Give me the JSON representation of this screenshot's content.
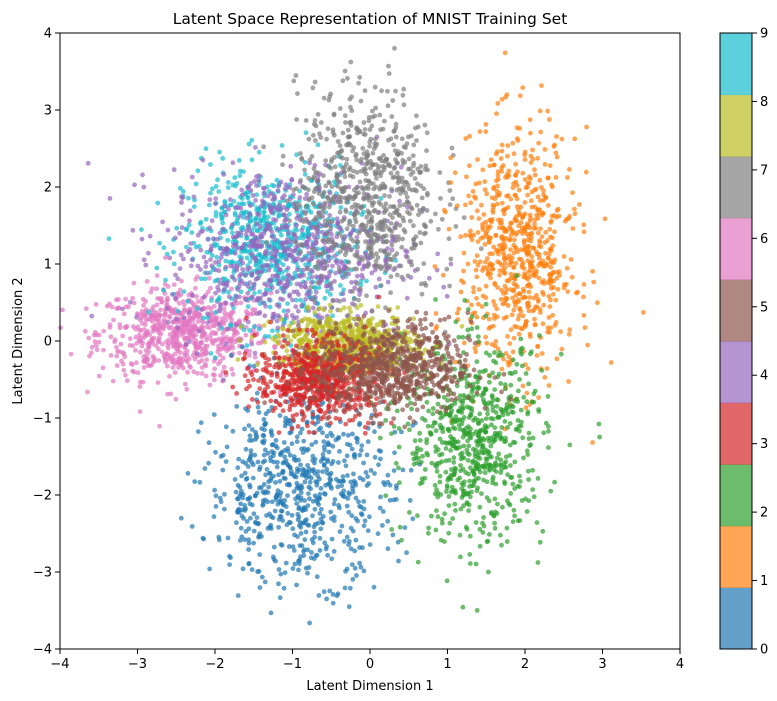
{
  "chart_data": {
    "type": "scatter",
    "title": "Latent Space Representation of MNIST Training Set",
    "xlabel": "Latent Dimension 1",
    "ylabel": "Latent Dimension 2",
    "xlim": [
      -4,
      4
    ],
    "ylim": [
      -4,
      4
    ],
    "x_ticks": [
      "−4",
      "−3",
      "−2",
      "−1",
      "0",
      "1",
      "2",
      "3",
      "4"
    ],
    "y_ticks": [
      "−4",
      "−3",
      "−2",
      "−1",
      "0",
      "1",
      "2",
      "3",
      "4"
    ],
    "grid": false,
    "colormap": "tab10",
    "point_alpha": 0.7,
    "colorbar": {
      "range": [
        0,
        9
      ],
      "ticks": [
        "0",
        "1",
        "2",
        "3",
        "4",
        "5",
        "6",
        "7",
        "8",
        "9"
      ],
      "colors": [
        "#1f77b4",
        "#ff7f0e",
        "#2ca02c",
        "#d62728",
        "#9467bd",
        "#8c564b",
        "#e377c2",
        "#7f7f7f",
        "#bcbd22",
        "#17becf"
      ]
    },
    "clusters": [
      {
        "label": "0",
        "color": "#1f77b4",
        "center": [
          -0.9,
          -1.9
        ],
        "spread": [
          0.6,
          0.6
        ]
      },
      {
        "label": "1",
        "color": "#ff7f0e",
        "center": [
          1.9,
          1.1
        ],
        "spread": [
          0.38,
          0.8
        ]
      },
      {
        "label": "2",
        "color": "#2ca02c",
        "center": [
          1.35,
          -1.3
        ],
        "spread": [
          0.45,
          0.65
        ]
      },
      {
        "label": "3",
        "color": "#d62728",
        "center": [
          -0.65,
          -0.5
        ],
        "spread": [
          0.4,
          0.25
        ]
      },
      {
        "label": "4",
        "color": "#9467bd",
        "center": [
          -1.1,
          1.15
        ],
        "spread": [
          0.75,
          0.55
        ]
      },
      {
        "label": "5",
        "color": "#8c564b",
        "center": [
          0.3,
          -0.35
        ],
        "spread": [
          0.5,
          0.3
        ]
      },
      {
        "label": "6",
        "color": "#e377c2",
        "center": [
          -2.4,
          0.1
        ],
        "spread": [
          0.55,
          0.3
        ]
      },
      {
        "label": "7",
        "color": "#7f7f7f",
        "center": [
          -0.05,
          1.9
        ],
        "spread": [
          0.45,
          0.7
        ]
      },
      {
        "label": "8",
        "color": "#bcbd22",
        "center": [
          -0.3,
          -0.05
        ],
        "spread": [
          0.45,
          0.2
        ]
      },
      {
        "label": "9",
        "color": "#17becf",
        "center": [
          -1.3,
          1.25
        ],
        "spread": [
          0.55,
          0.5
        ]
      }
    ]
  }
}
